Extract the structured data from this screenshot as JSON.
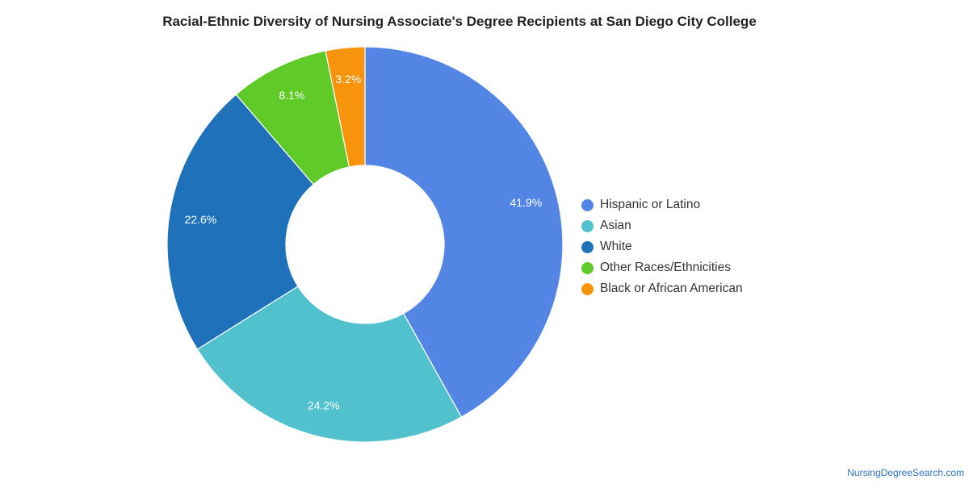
{
  "chart_data": {
    "type": "pie",
    "title": "Racial-Ethnic Diversity of Nursing Associate's Degree Recipients at San Diego City College",
    "donut": true,
    "slices": [
      {
        "name": "Hispanic or Latino",
        "value": 41.9,
        "label": "41.9%",
        "color": "#5385e4"
      },
      {
        "name": "Asian",
        "value": 24.2,
        "label": "24.2%",
        "color": "#51c1ce"
      },
      {
        "name": "White",
        "value": 22.6,
        "label": "22.6%",
        "color": "#1f72ba"
      },
      {
        "name": "Other Races/Ethnicities",
        "value": 8.1,
        "label": "8.1%",
        "color": "#5fca28"
      },
      {
        "name": "Black or African American",
        "value": 3.2,
        "label": "3.2%",
        "color": "#f8940b"
      }
    ],
    "legend_position": "right"
  },
  "source": "NursingDegreeSearch.com"
}
